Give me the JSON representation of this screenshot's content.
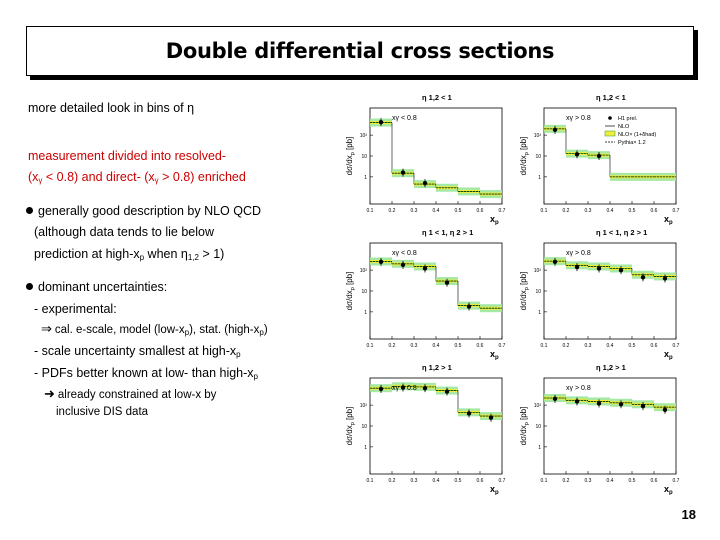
{
  "title": "Double differential cross sections",
  "text": {
    "line1": "more detailed look in bins of η",
    "line2": "measurement divided into resolved-",
    "line3a": "(x",
    "line3_sub1": "γ",
    "line3b": " < 0.8) and direct- (x",
    "line3_sub2": "γ",
    "line3c": " > 0.8) enriched",
    "line4": "generally good description by NLO QCD",
    "line5": "(although data tends to lie below",
    "line6a": "prediction at high-x",
    "line6_sub1": "p",
    "line6b": " when η",
    "line6_sub2": "1,2",
    "line6c": " > 1)",
    "line7": "dominant uncertainties:",
    "line8": "- experimental:",
    "line9a": "cal. e-scale, model (low-x",
    "line9_sub1": "p",
    "line9b": "), stat. (high-x",
    "line9_sub2": "p",
    "line9c": ")",
    "line10a": "- scale uncertainty smallest at high-x",
    "line10_sub": "p",
    "line11a": "- PDFs better known at low- than high-x",
    "line11_sub": "p",
    "line12": "already constrained at low-x by",
    "line13": "inclusive DIS data"
  },
  "page_number": "18",
  "plot_labels": {
    "ylabel": "dσ/dx",
    "ylabel_sub": "p",
    "ylabel_unit": " [pb]",
    "xlabel": "x",
    "xlabel_sub": "p",
    "xticks": [
      "0.1",
      "0.2",
      "0.3",
      "0.4",
      "0.5",
      "0.6",
      "0.7"
    ],
    "yticks": [
      "10²",
      "10",
      "1"
    ],
    "legend": [
      "H1 prel.",
      "NLO",
      "NLO× (1+δ",
      "had",
      ")",
      "Pythia× 1.2"
    ],
    "legend_hadr": "NLO× (1+δhad)",
    "colors": {
      "band": "#9be79b",
      "band_dark": "#2da02d",
      "yellow": "#f2ec3c",
      "points": "#000000"
    }
  },
  "chart_data": [
    {
      "type": "scatter",
      "title": "η 1,2 < 1",
      "annotation": "xγ < 0.8",
      "x": [
        0.15,
        0.25,
        0.35,
        0.45,
        0.55,
        0.65
      ],
      "values": [
        420,
        1.6,
        0.5,
        null,
        null,
        null
      ],
      "nlo": [
        400,
        1.5,
        0.45,
        0.3,
        0.2,
        0.15
      ],
      "xlabel": "xp",
      "ylabel": "dσ/dxp [pb]",
      "yscale": "log"
    },
    {
      "type": "scatter",
      "title": "η 1,2 < 1",
      "annotation": "xγ > 0.8",
      "legend": [
        "H1 prel.",
        "NLO",
        "NLO× (1+δhad)",
        "Pythia× 1.2"
      ],
      "x": [
        0.15,
        0.25,
        0.35,
        0.45,
        0.55,
        0.65
      ],
      "values": [
        180,
        12,
        10,
        null,
        null,
        null
      ],
      "nlo": [
        200,
        13,
        11,
        1,
        1,
        1
      ],
      "xlabel": "xp",
      "ylabel": "dσ/dxp [pb]",
      "yscale": "log"
    },
    {
      "type": "scatter",
      "title": "η 1 < 1, η 2 > 1",
      "annotation": "xγ < 0.8",
      "x": [
        0.15,
        0.25,
        0.35,
        0.45,
        0.55,
        0.65
      ],
      "values": [
        250,
        180,
        120,
        25,
        1.8,
        null
      ],
      "nlo": [
        260,
        200,
        150,
        30,
        2,
        1.5
      ],
      "xlabel": "xp",
      "ylabel": "dσ/dxp [pb]",
      "yscale": "log"
    },
    {
      "type": "scatter",
      "title": "η 1 < 1, η 2 > 1",
      "annotation": "xγ > 0.8",
      "x": [
        0.15,
        0.25,
        0.35,
        0.45,
        0.55,
        0.65
      ],
      "values": [
        250,
        140,
        120,
        100,
        45,
        40
      ],
      "nlo": [
        270,
        170,
        150,
        120,
        60,
        50
      ],
      "xlabel": "xp",
      "ylabel": "dσ/dxp [pb]",
      "yscale": "log"
    },
    {
      "type": "scatter",
      "title": "η 1,2 > 1",
      "annotation": "xγ < 0.8",
      "x": [
        0.15,
        0.25,
        0.35,
        0.45,
        0.55,
        0.65
      ],
      "values": [
        600,
        700,
        650,
        450,
        40,
        25
      ],
      "nlo": [
        650,
        800,
        750,
        500,
        45,
        30
      ],
      "xlabel": "xp",
      "ylabel": "dσ/dxp [pb]",
      "yscale": "log"
    },
    {
      "type": "scatter",
      "title": "η 1,2 > 1",
      "annotation": "xγ > 0.8",
      "x": [
        0.15,
        0.25,
        0.35,
        0.45,
        0.55,
        0.65
      ],
      "values": [
        200,
        150,
        120,
        110,
        90,
        60
      ],
      "nlo": [
        220,
        170,
        150,
        130,
        110,
        80
      ],
      "xlabel": "xp",
      "ylabel": "dσ/dxp [pb]",
      "yscale": "log"
    }
  ]
}
